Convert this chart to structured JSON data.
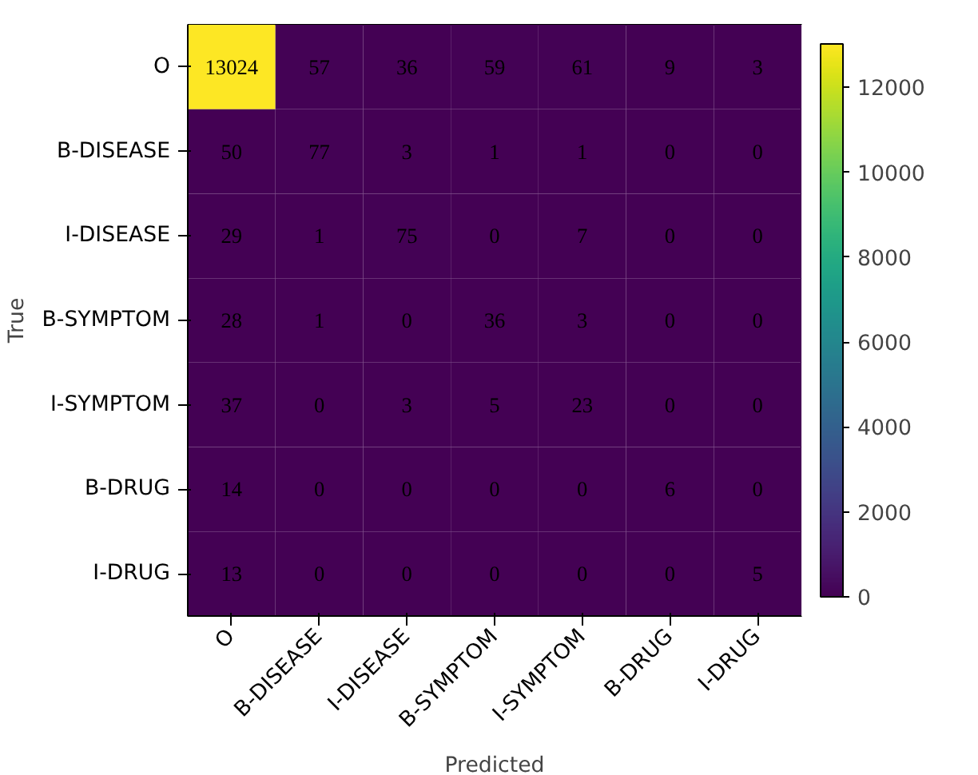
{
  "chart_data": {
    "type": "heatmap",
    "xlabel": "Predicted",
    "ylabel": "True",
    "categories": [
      "O",
      "B-DISEASE",
      "I-DISEASE",
      "B-SYMPTOM",
      "I-SYMPTOM",
      "B-DRUG",
      "I-DRUG"
    ],
    "y_categories": [
      "O",
      "B-DISEASE",
      "I-DISEASE",
      "B-SYMPTOM",
      "I-SYMPTOM",
      "B-DRUG",
      "I-DRUG"
    ],
    "cells": [
      [
        13024,
        57,
        36,
        59,
        61,
        9,
        3
      ],
      [
        50,
        77,
        3,
        1,
        1,
        0,
        0
      ],
      [
        29,
        1,
        75,
        0,
        7,
        0,
        0
      ],
      [
        28,
        1,
        0,
        36,
        3,
        0,
        0
      ],
      [
        37,
        0,
        3,
        5,
        23,
        0,
        0
      ],
      [
        14,
        0,
        0,
        0,
        0,
        6,
        0
      ],
      [
        13,
        0,
        0,
        0,
        0,
        0,
        5
      ]
    ],
    "clim": [
      0,
      13024
    ],
    "cticks": [
      0,
      2000,
      4000,
      6000,
      8000,
      10000,
      12000
    ],
    "data_labels": true
  }
}
